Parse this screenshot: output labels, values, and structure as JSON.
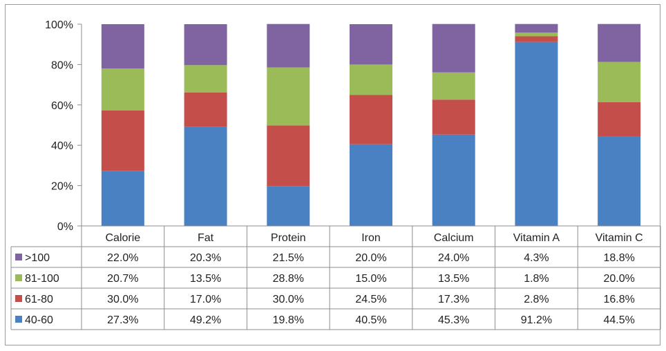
{
  "chart_data": {
    "type": "bar",
    "stacked": true,
    "percent": true,
    "categories": [
      "Calorie",
      "Fat",
      "Protein",
      "Iron",
      "Calcium",
      "Vitamin A",
      "Vitamin C"
    ],
    "ylim": [
      0,
      100
    ],
    "yticks": [
      "0%",
      "20%",
      "40%",
      "60%",
      "80%",
      "100%"
    ],
    "series": [
      {
        "name": "40-60",
        "color": "#4a81c2",
        "values": [
          27.3,
          49.2,
          19.8,
          40.5,
          45.3,
          91.2,
          44.5
        ],
        "labels": [
          "27.3%",
          "49.2%",
          "19.8%",
          "40.5%",
          "45.3%",
          "91.2%",
          "44.5%"
        ]
      },
      {
        "name": "61-80",
        "color": "#c44e4a",
        "values": [
          30.0,
          17.0,
          30.0,
          24.5,
          17.3,
          2.8,
          16.8
        ],
        "labels": [
          "30.0%",
          "17.0%",
          "30.0%",
          "24.5%",
          "17.3%",
          "2.8%",
          "16.8%"
        ]
      },
      {
        "name": "81-100",
        "color": "#9bbb59",
        "values": [
          20.7,
          13.5,
          28.8,
          15.0,
          13.5,
          1.8,
          20.0
        ],
        "labels": [
          "20.7%",
          "13.5%",
          "28.8%",
          "15.0%",
          "13.5%",
          "1.8%",
          "20.0%"
        ]
      },
      {
        "name": ">100",
        "color": "#8064a2",
        "values": [
          22.0,
          20.3,
          21.5,
          20.0,
          24.0,
          4.3,
          18.8
        ],
        "labels": [
          "22.0%",
          "20.3%",
          "21.5%",
          "20.0%",
          "24.0%",
          "4.3%",
          "18.8%"
        ]
      }
    ],
    "table_row_order": [
      ">100",
      "81-100",
      "61-80",
      "40-60"
    ],
    "grid": false,
    "legend": "data-table"
  }
}
